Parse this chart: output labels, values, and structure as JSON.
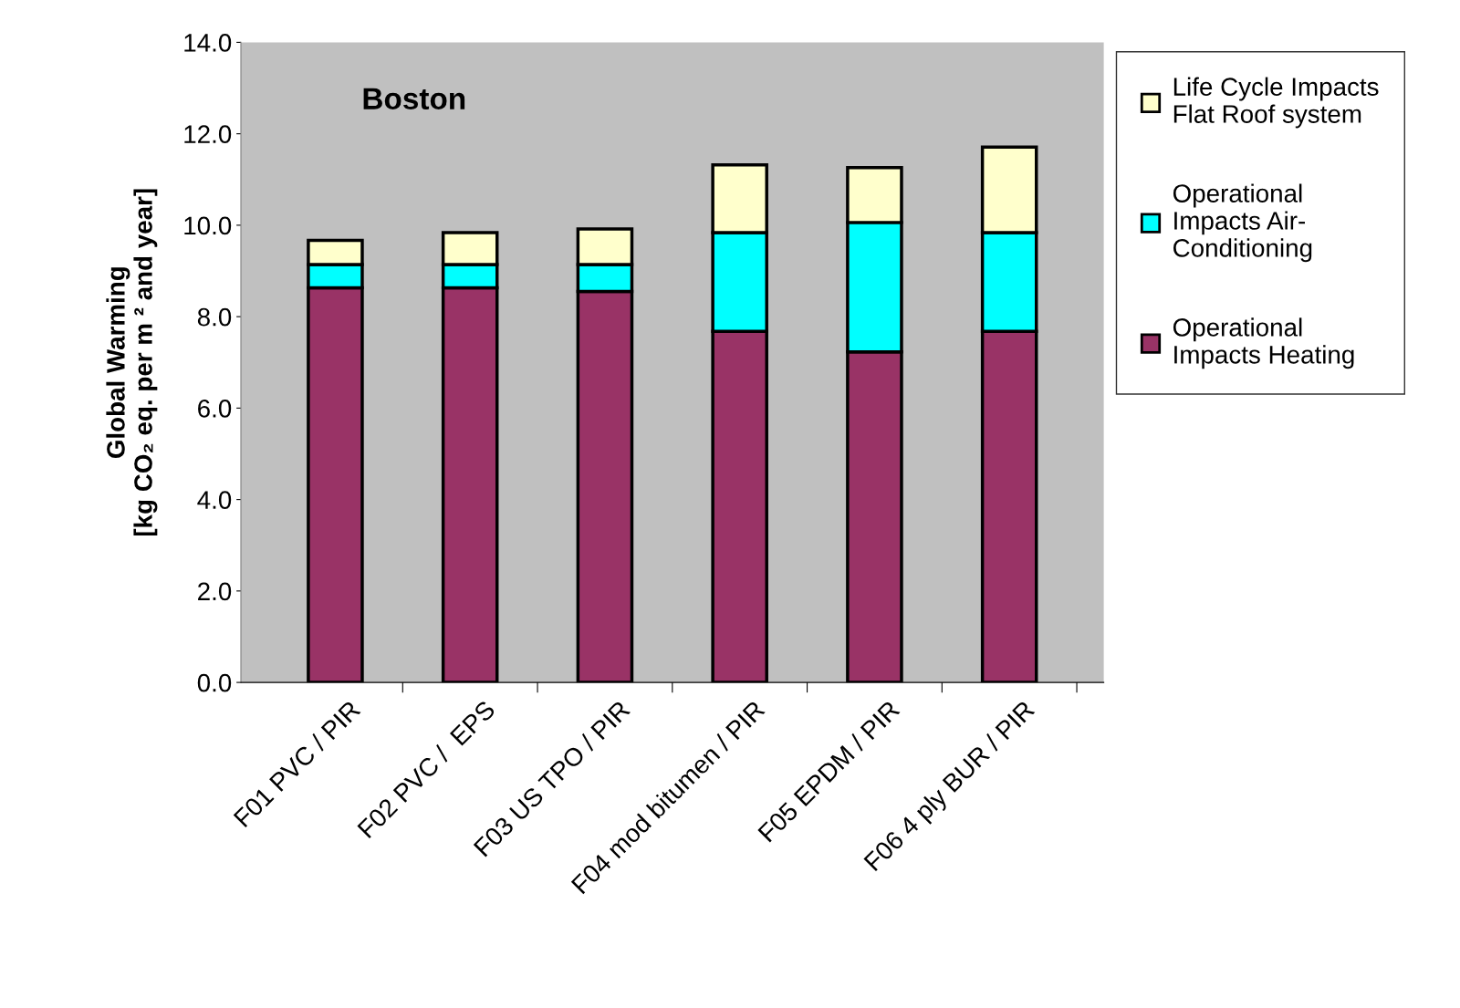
{
  "chart_data": {
    "type": "bar",
    "stacked": true,
    "title": "Boston",
    "ylabel": "Global Warming\n[kg CO₂ eq. per m ² and year]",
    "categories": [
      "F01 PVC / PIR",
      "F02 PVC /  EPS",
      "F03 US TPO / PIR",
      "F04 mod bitumen / PIR",
      "F05 EPDM / PIR",
      "F06 4 ply BUR / PIR"
    ],
    "series": [
      {
        "name": "Operational\nImpacts Heating",
        "color": "#993366",
        "values": [
          8.63,
          8.63,
          8.55,
          7.68,
          7.23,
          7.68
        ]
      },
      {
        "name": "Operational\nImpacts Air-\nConditioning",
        "color": "#00ffff",
        "values": [
          0.51,
          0.51,
          0.59,
          2.16,
          2.83,
          2.16
        ]
      },
      {
        "name": "Life Cycle Impacts\nFlat Roof system",
        "color": "#ffffcc",
        "values": [
          0.53,
          0.7,
          0.78,
          1.48,
          1.2,
          1.87
        ]
      }
    ],
    "ylim": [
      0,
      14
    ],
    "yticks": [
      {
        "value": 0,
        "label": "0.0"
      },
      {
        "value": 2,
        "label": "2.0"
      },
      {
        "value": 4,
        "label": "4.0"
      },
      {
        "value": 6,
        "label": "6.0"
      },
      {
        "value": 8,
        "label": "8.0"
      },
      {
        "value": 10,
        "label": "10.0"
      },
      {
        "value": 12,
        "label": "12.0"
      },
      {
        "value": 14,
        "label": "14.0"
      }
    ],
    "grid": false,
    "legend": "right"
  }
}
